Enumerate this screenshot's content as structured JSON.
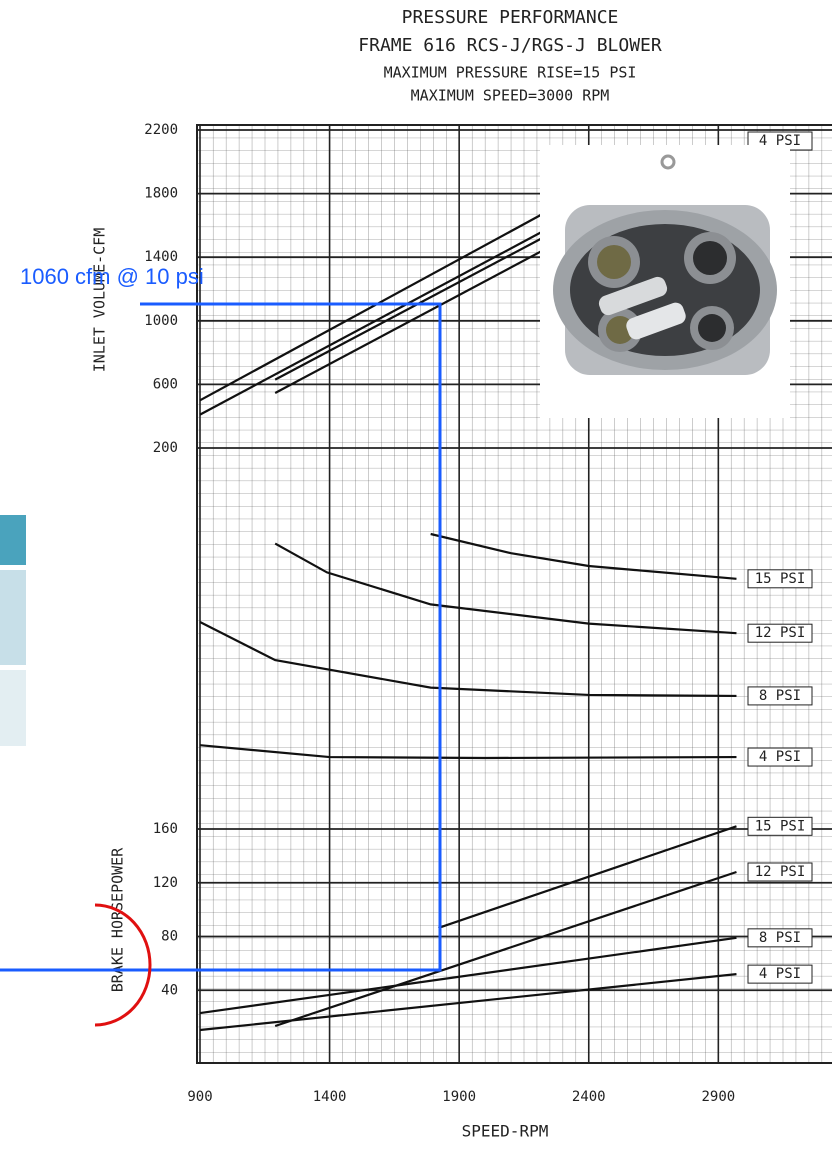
{
  "chart_data": {
    "type": "line",
    "title": "PRESSURE PERFORMANCE",
    "subtitle": [
      "FRAME 616 RCS-J/RGS-J BLOWER",
      "MAXIMUM PRESSURE RISE=15 PSI",
      "MAXIMUM SPEED=3000 RPM"
    ],
    "xlabel": "SPEED-RPM",
    "xlim": [
      900,
      3300
    ],
    "xticks": [
      900,
      1400,
      1900,
      2400,
      2900
    ],
    "annotation": "1060 cfm @ 10 psi",
    "panels": [
      {
        "ylabel": "INLET VOLUME-CFM",
        "ylim": [
          200,
          2200
        ],
        "yticks": [
          200,
          600,
          1000,
          1400,
          1800,
          2200
        ],
        "series": [
          {
            "name": "4 PSI",
            "color": "#111111",
            "x": [
              900,
              2220
            ],
            "values": [
              500,
              1670
            ]
          },
          {
            "color": "#111111",
            "x": [
              900,
              2220
            ],
            "values": [
              410,
              1560
            ]
          },
          {
            "color": "#111111",
            "x": [
              1190,
              2220
            ],
            "values": [
              630,
              1520
            ]
          },
          {
            "color": "#111111",
            "x": [
              1190,
              2220
            ],
            "values": [
              546,
              1440
            ]
          }
        ]
      },
      {
        "ylim": [
          0,
          100
        ],
        "series": [
          {
            "name": "15 PSI",
            "color": "#111111",
            "x": [
              1790,
              2100,
              2400,
              2970
            ],
            "values": [
              80,
              74,
              70,
              66
            ]
          },
          {
            "name": "12 PSI",
            "color": "#111111",
            "x": [
              1190,
              1390,
              1790,
              2400,
              2970
            ],
            "values": [
              77,
              68,
              58,
              52,
              49
            ]
          },
          {
            "name": "8 PSI",
            "color": "#111111",
            "x": [
              900,
              1190,
              1790,
              2400,
              2970
            ],
            "values": [
              52.5,
              40.6,
              32,
              29.7,
              29.4
            ]
          },
          {
            "name": "4 PSI",
            "color": "#111111",
            "x": [
              900,
              1400,
              2000,
              2970
            ],
            "values": [
              14,
              10.3,
              10,
              10.3
            ]
          }
        ]
      },
      {
        "ylabel": "BRAKE HORSEPOWER",
        "ylim": [
          0,
          160
        ],
        "yticks": [
          40,
          80,
          120,
          160
        ],
        "series": [
          {
            "name": "15 PSI",
            "color": "#111111",
            "x": [
              1820,
              2970
            ],
            "values": [
              86.4,
              162
            ]
          },
          {
            "name": "12 PSI",
            "color": "#111111",
            "x": [
              1190,
              2970
            ],
            "values": [
              13.4,
              128
            ]
          },
          {
            "name": "8 PSI",
            "color": "#111111",
            "x": [
              900,
              2970
            ],
            "values": [
              23,
              79
            ]
          },
          {
            "name": "4 PSI",
            "color": "#111111",
            "x": [
              900,
              2970
            ],
            "values": [
              10.4,
              52
            ]
          }
        ]
      }
    ]
  }
}
